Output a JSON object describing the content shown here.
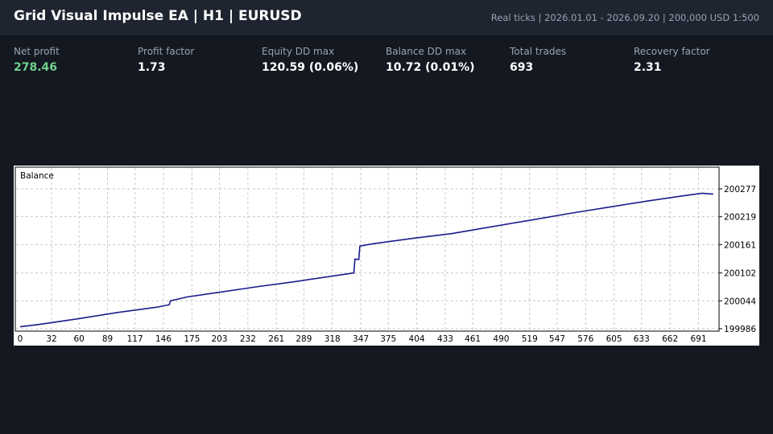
{
  "header": {
    "title": "Grid Visual Impulse EA  |  H1  |  EURUSD",
    "meta": "Real ticks  |  2026.01.01 - 2026.09.20  |  200,000 USD  1:500"
  },
  "stats": [
    {
      "label": "Net profit",
      "value": "278.46",
      "positive": true
    },
    {
      "label": "Profit factor",
      "value": "1.73"
    },
    {
      "label": "Equity DD max",
      "value": "120.59 (0.06%)"
    },
    {
      "label": "Balance DD max",
      "value": "10.72 (0.01%)"
    },
    {
      "label": "Total trades",
      "value": "693"
    },
    {
      "label": "Recovery factor",
      "value": "2.31"
    }
  ],
  "chart_data": {
    "type": "line",
    "legend_label": "Balance",
    "x_ticks": [
      "0",
      "32",
      "60",
      "89",
      "117",
      "146",
      "175",
      "203",
      "232",
      "261",
      "289",
      "318",
      "347",
      "375",
      "404",
      "433",
      "461",
      "490",
      "519",
      "547",
      "576",
      "605",
      "633",
      "662",
      "691"
    ],
    "y_ticks": [
      "200277",
      "200219",
      "200161",
      "200102",
      "200044",
      "199986"
    ],
    "xlim": [
      0,
      707
    ],
    "ylim": [
      199986,
      200277
    ],
    "grid": true,
    "line_color": "#1c1c8c",
    "series": [
      {
        "x": [
          0,
          20,
          60,
          100,
          140,
          152,
          153,
          170,
          200,
          240,
          280,
          320,
          340,
          341,
          345,
          346,
          360,
          400,
          440,
          480,
          520,
          560,
          600,
          640,
          680,
          695,
          706
        ],
        "y": [
          199990,
          199995,
          200007,
          200020,
          200031,
          200036,
          200044,
          200052,
          200061,
          200073,
          200084,
          200096,
          200102,
          200131,
          200130,
          200158,
          200163,
          200174,
          200184,
          200198,
          200212,
          200226,
          200239,
          200252,
          200264,
          200268,
          200266
        ]
      }
    ]
  }
}
